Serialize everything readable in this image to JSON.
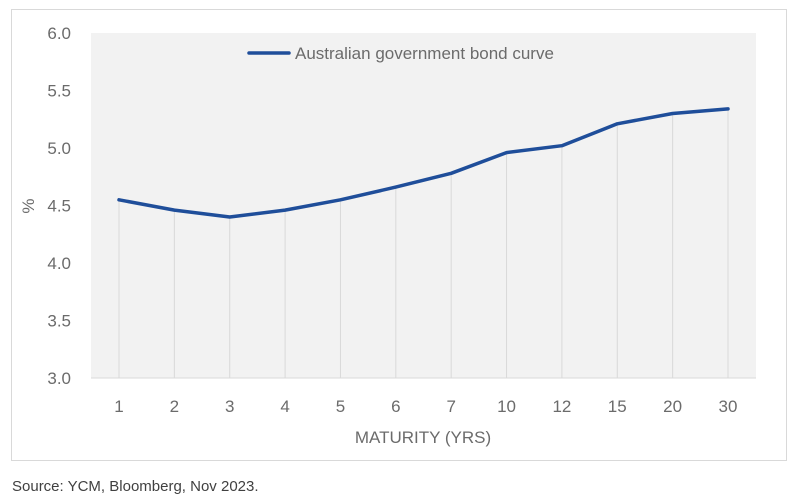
{
  "chart_data": {
    "type": "line",
    "categories": [
      "1",
      "2",
      "3",
      "4",
      "5",
      "6",
      "7",
      "10",
      "12",
      "15",
      "20",
      "30"
    ],
    "series": [
      {
        "name": "Australian government bond curve",
        "values": [
          4.55,
          4.46,
          4.4,
          4.46,
          4.55,
          4.66,
          4.78,
          4.96,
          5.02,
          5.21,
          5.3,
          5.34
        ],
        "color": "#1f4e9a"
      }
    ],
    "xlabel": "MATURITY (YRS)",
    "ylabel": "%",
    "ylim": [
      3.0,
      6.0
    ],
    "yticks": [
      "3.0",
      "3.5",
      "4.0",
      "4.5",
      "5.0",
      "5.5",
      "6.0"
    ],
    "grid": "vertical",
    "legend": "top-center"
  },
  "source": "Source: YCM, Bloomberg, Nov 2023."
}
